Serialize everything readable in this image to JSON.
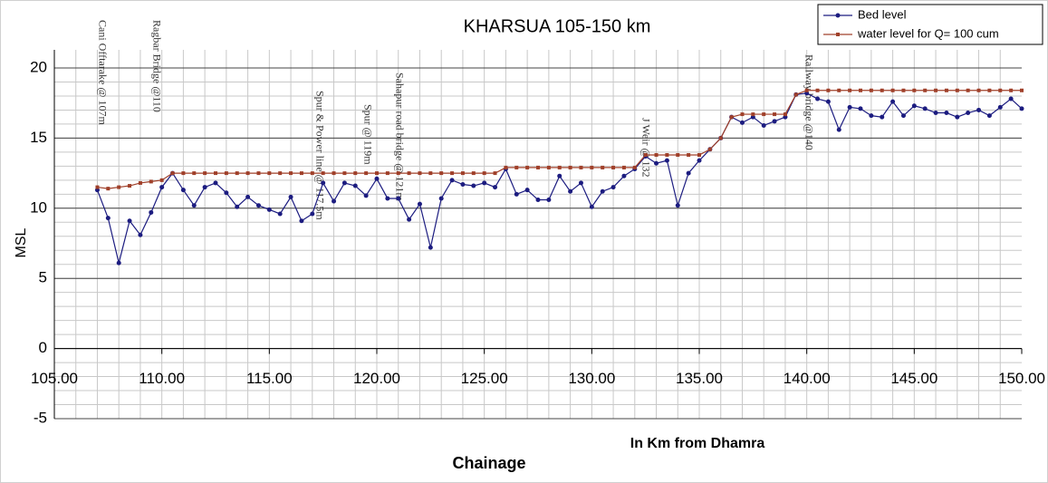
{
  "chart_data": {
    "type": "line",
    "title": "KHARSUA 105-150 km",
    "x_label": "Chainage",
    "x_sublabel": "In Km from Dhamra",
    "y_label": "MSL",
    "xlim": [
      105,
      150
    ],
    "xticks": [
      {
        "value": 105,
        "label": "105.00"
      },
      {
        "value": 110,
        "label": "110.00"
      },
      {
        "value": 115,
        "label": "115.00"
      },
      {
        "value": 120,
        "label": "120.00"
      },
      {
        "value": 125,
        "label": "125.00"
      },
      {
        "value": 130,
        "label": "130.00"
      },
      {
        "value": 135,
        "label": "135.00"
      },
      {
        "value": 140,
        "label": "140.00"
      },
      {
        "value": 145,
        "label": "145.00"
      },
      {
        "value": 150,
        "label": "150.00"
      }
    ],
    "ylim": [
      -5,
      20
    ],
    "yticks": [
      -5,
      0,
      5,
      10,
      15,
      20
    ],
    "grid": true,
    "legend": "top-right",
    "x": [
      107,
      107.5,
      108,
      108.5,
      109,
      109.5,
      110,
      110.5,
      111,
      111.5,
      112,
      112.5,
      113,
      113.5,
      114,
      114.5,
      115,
      115.5,
      116,
      116.5,
      117,
      117.5,
      118,
      118.5,
      119,
      119.5,
      120,
      120.5,
      121,
      121.5,
      122,
      122.5,
      123,
      123.5,
      124,
      124.5,
      125,
      125.5,
      126,
      126.5,
      127,
      127.5,
      128,
      128.5,
      129,
      129.5,
      130,
      130.5,
      131,
      131.5,
      132,
      132.5,
      133,
      133.5,
      134,
      134.5,
      135,
      135.5,
      136,
      136.5,
      137,
      137.5,
      138,
      138.5,
      139,
      139.5,
      140,
      140.5,
      141,
      141.5,
      142,
      142.5,
      143,
      143.5,
      144,
      144.5,
      145,
      145.5,
      146,
      146.5,
      147,
      147.5,
      148,
      148.5,
      149,
      149.5,
      150
    ],
    "series": [
      {
        "name": "Bed level",
        "color": "#1c1c80",
        "values": [
          11.3,
          9.3,
          6.1,
          9.1,
          8.1,
          9.7,
          11.5,
          12.5,
          11.3,
          10.2,
          11.5,
          11.8,
          11.1,
          10.1,
          10.8,
          10.2,
          9.9,
          9.6,
          10.8,
          9.1,
          9.6,
          11.8,
          10.5,
          11.8,
          11.6,
          10.9,
          12.1,
          10.7,
          10.7,
          9.2,
          10.3,
          7.2,
          10.7,
          12.0,
          11.7,
          11.6,
          11.8,
          11.5,
          12.8,
          11.0,
          11.3,
          10.6,
          10.6,
          12.3,
          11.2,
          11.8,
          10.1,
          11.2,
          11.5,
          12.3,
          12.8,
          13.7,
          13.2,
          13.4,
          10.2,
          12.5,
          13.4,
          14.2,
          15.0,
          16.5,
          16.1,
          16.5,
          15.9,
          16.2,
          16.5,
          18.1,
          18.2,
          17.8,
          17.6,
          15.6,
          17.2,
          17.1,
          16.6,
          16.5,
          17.6,
          16.6,
          17.3,
          17.1,
          16.8,
          16.8,
          16.5,
          16.8,
          17.0,
          16.6,
          17.2,
          17.8,
          17.1
        ]
      },
      {
        "name": "water level for Q= 100 cum",
        "color": "#a0402a",
        "values": [
          11.5,
          11.4,
          11.5,
          11.6,
          11.8,
          11.9,
          12.0,
          12.5,
          12.5,
          12.5,
          12.5,
          12.5,
          12.5,
          12.5,
          12.5,
          12.5,
          12.5,
          12.5,
          12.5,
          12.5,
          12.5,
          12.5,
          12.5,
          12.5,
          12.5,
          12.5,
          12.5,
          12.5,
          12.5,
          12.5,
          12.5,
          12.5,
          12.5,
          12.5,
          12.5,
          12.5,
          12.5,
          12.5,
          12.9,
          12.9,
          12.9,
          12.9,
          12.9,
          12.9,
          12.9,
          12.9,
          12.9,
          12.9,
          12.9,
          12.9,
          12.9,
          13.8,
          13.8,
          13.8,
          13.8,
          13.8,
          13.8,
          14.2,
          15.0,
          16.5,
          16.7,
          16.7,
          16.7,
          16.7,
          16.7,
          18.1,
          18.4,
          18.4,
          18.4,
          18.4,
          18.4,
          18.4,
          18.4,
          18.4,
          18.4,
          18.4,
          18.4,
          18.4,
          18.4,
          18.4,
          18.4,
          18.4,
          18.4,
          18.4,
          18.4,
          18.4,
          18.4
        ]
      }
    ],
    "annotations": [
      "Cani Offtarake @ 107m",
      "Ragbar Bridge @110",
      "Spur & Power line @ 117.5m",
      "Spur @ 119m",
      "Sahapur road bridge @ 121m",
      "J Weir @ 132",
      "Railway bridge @140"
    ]
  }
}
